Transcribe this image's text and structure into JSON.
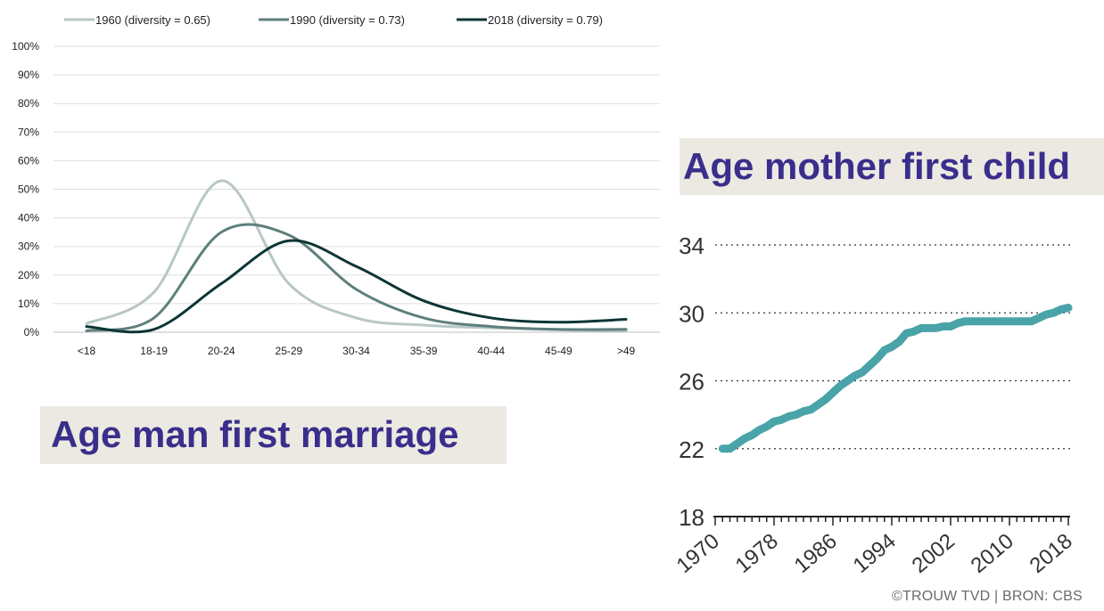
{
  "chart_data": [
    {
      "type": "line",
      "title": "",
      "xlabel": "",
      "ylabel": "",
      "categories": [
        "<18",
        "18-19",
        "20-24",
        "25-29",
        "30-34",
        "35-39",
        "40-44",
        "45-49",
        ">49"
      ],
      "y_ticks": [
        "0%",
        "10%",
        "20%",
        "30%",
        "40%",
        "50%",
        "60%",
        "70%",
        "80%",
        "90%",
        "100%"
      ],
      "ylim": [
        0,
        100
      ],
      "grid": true,
      "legend_position": "top",
      "series": [
        {
          "name": "1960 (diversity = 0.65)",
          "color": "#b8c7c6",
          "values": [
            3,
            14,
            53,
            17,
            5,
            2.5,
            1.5,
            0.8,
            0.5
          ]
        },
        {
          "name": "1990 (diversity = 0.73)",
          "color": "#5e7f7c",
          "values": [
            0.5,
            5,
            35,
            34,
            15,
            5,
            2,
            1,
            1
          ]
        },
        {
          "name": "2018 (diversity = 0.79)",
          "color": "#0d3535",
          "values": [
            2,
            1,
            17,
            32,
            23,
            11,
            5,
            3.5,
            4.5
          ]
        }
      ],
      "annotation": "Age man first marriage"
    },
    {
      "type": "line",
      "title": "Age mother first child",
      "x_ticks": [
        "1970",
        "1978",
        "1986",
        "1994",
        "2002",
        "2010",
        "2018"
      ],
      "y_ticks": [
        "18",
        "22",
        "26",
        "30",
        "34"
      ],
      "xlim": [
        1970,
        2018
      ],
      "ylim": [
        18,
        34
      ],
      "grid": true,
      "series": [
        {
          "name": "",
          "color": "#4aa3a8",
          "x": [
            1971,
            1972,
            1973,
            1974,
            1975,
            1976,
            1977,
            1978,
            1979,
            1980,
            1981,
            1982,
            1983,
            1984,
            1985,
            1986,
            1987,
            1988,
            1989,
            1990,
            1991,
            1992,
            1993,
            1994,
            1995,
            1996,
            1997,
            1998,
            1999,
            2000,
            2001,
            2002,
            2003,
            2004,
            2005,
            2006,
            2007,
            2008,
            2009,
            2010,
            2011,
            2012,
            2013,
            2014,
            2015,
            2016,
            2017,
            2018
          ],
          "values": [
            22.0,
            22.0,
            22.3,
            22.6,
            22.8,
            23.1,
            23.3,
            23.6,
            23.7,
            23.9,
            24.0,
            24.2,
            24.3,
            24.6,
            24.9,
            25.3,
            25.7,
            26.0,
            26.3,
            26.5,
            26.9,
            27.3,
            27.8,
            28.0,
            28.3,
            28.8,
            28.9,
            29.1,
            29.1,
            29.1,
            29.2,
            29.2,
            29.4,
            29.5,
            29.5,
            29.5,
            29.5,
            29.5,
            29.5,
            29.5,
            29.5,
            29.5,
            29.5,
            29.7,
            29.9,
            30.0,
            30.2,
            30.3
          ]
        }
      ]
    }
  ],
  "labels": {
    "marriage": "Age man first marriage",
    "mother": "Age mother first child",
    "credit": "©TROUW TVD | BRON: CBS"
  }
}
